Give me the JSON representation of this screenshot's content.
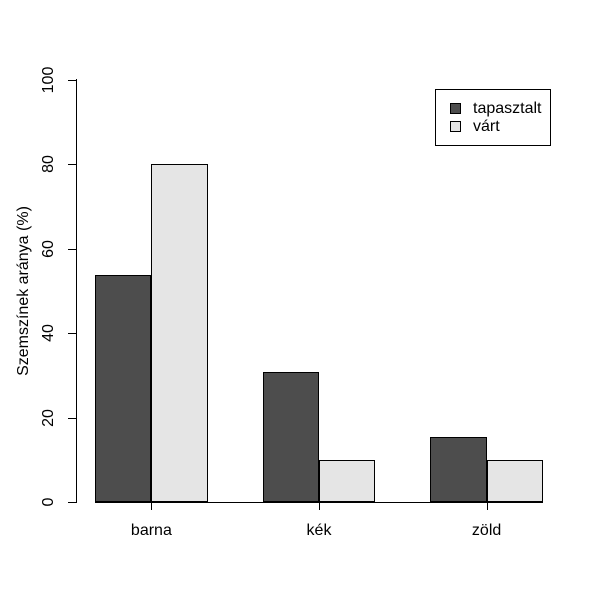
{
  "figure": {
    "background": "#FFFFFF",
    "text_color": "#000000"
  },
  "chart_data": {
    "type": "bar",
    "title": "",
    "xlabel": "",
    "ylabel": "Szemszínek aránya (%)",
    "categories": [
      "barna",
      "kék",
      "zöld"
    ],
    "series": [
      {
        "name": "tapasztalt",
        "color": "#4D4D4D",
        "values": [
          53.8,
          30.8,
          15.4
        ]
      },
      {
        "name": "várt",
        "color": "#E5E5E5",
        "values": [
          80,
          10,
          10
        ]
      }
    ],
    "ylim": [
      0,
      100
    ],
    "yticks": [
      0,
      20,
      40,
      60,
      80,
      100
    ],
    "grid": false,
    "legend_position": "top-right",
    "bar_border_color": "#000000",
    "axis_color": "#000000"
  }
}
